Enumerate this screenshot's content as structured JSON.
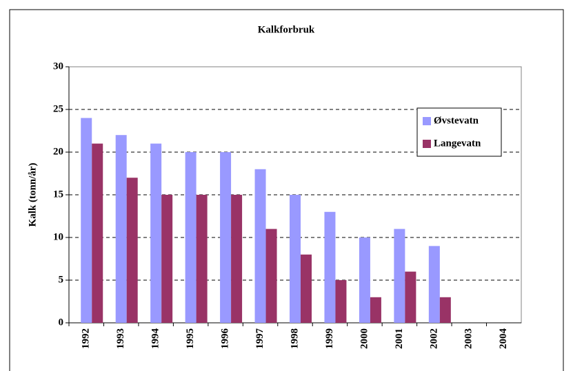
{
  "chart_data": {
    "type": "bar",
    "title": "Kalkforbruk",
    "y_label": "Kalk (tonn/år)",
    "categories": [
      "1992",
      "1993",
      "1994",
      "1995",
      "1996",
      "1997",
      "1998",
      "1999",
      "2000",
      "2001",
      "2002",
      "2003",
      "2004"
    ],
    "series": [
      {
        "name": "Øvstevatn",
        "color": "#9999ff",
        "values": [
          24,
          22,
          21,
          20,
          20,
          18,
          15,
          13,
          10,
          11,
          9,
          null,
          null
        ]
      },
      {
        "name": "Langevatn",
        "color": "#993366",
        "values": [
          21,
          17,
          15,
          15,
          15,
          11,
          8,
          5,
          3,
          6,
          3,
          null,
          null
        ]
      }
    ],
    "ylim": [
      0,
      30
    ],
    "yticks": [
      0,
      5,
      10,
      15,
      20,
      25,
      30
    ],
    "grid": true,
    "legend": "right"
  }
}
